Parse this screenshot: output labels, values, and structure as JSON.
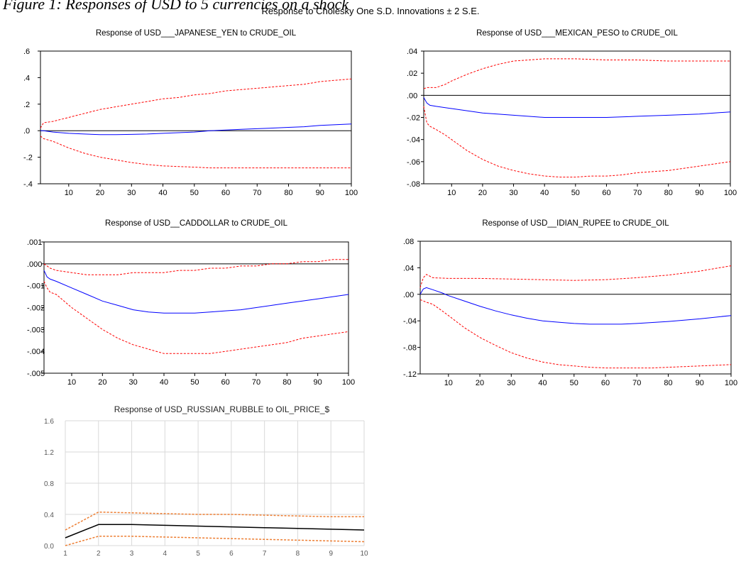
{
  "figure": {
    "caption": "Figure 1: Responses of USD to 5 currencies on a shock",
    "suptitle": "Response to Cholesky One S.D. Innovations ± 2 S.E."
  },
  "colors": {
    "response": "#0000ff",
    "bands": "#ff0000",
    "zero": "#000000",
    "response_rubble": "#000000",
    "bands_rubble": "#ed7d31",
    "grid_rubble": "#d9d9d9"
  },
  "chart_data": [
    {
      "type": "line",
      "title": "Response of USD___JAPANESE_YEN to CRUDE_OIL",
      "xlim": [
        1,
        100
      ],
      "ylim": [
        -0.4,
        0.6
      ],
      "yticks": [
        0.6,
        0.4,
        0.2,
        0.0,
        -0.2,
        -0.4
      ],
      "ytick_labels": [
        ".6",
        ".4",
        ".2",
        ".0",
        "-.2",
        "-.4"
      ],
      "xticks": [
        10,
        20,
        30,
        40,
        50,
        60,
        70,
        80,
        90,
        100
      ],
      "zero_line": true,
      "series": [
        {
          "role": "response",
          "x": [
            1,
            2,
            5,
            10,
            15,
            20,
            25,
            30,
            35,
            40,
            45,
            50,
            55,
            60,
            65,
            70,
            75,
            80,
            85,
            90,
            95,
            100
          ],
          "values": [
            0.0,
            0.0,
            -0.01,
            -0.02,
            -0.025,
            -0.03,
            -0.03,
            -0.028,
            -0.025,
            -0.02,
            -0.015,
            -0.01,
            0.0,
            0.005,
            0.01,
            0.015,
            0.02,
            0.025,
            0.03,
            0.04,
            0.045,
            0.05
          ]
        },
        {
          "role": "upper",
          "x": [
            1,
            2,
            5,
            10,
            15,
            20,
            25,
            30,
            35,
            40,
            45,
            50,
            55,
            60,
            65,
            70,
            75,
            80,
            85,
            90,
            95,
            100
          ],
          "values": [
            0.02,
            0.06,
            0.07,
            0.1,
            0.13,
            0.16,
            0.18,
            0.2,
            0.22,
            0.24,
            0.25,
            0.27,
            0.28,
            0.3,
            0.31,
            0.32,
            0.33,
            0.34,
            0.35,
            0.37,
            0.38,
            0.39
          ]
        },
        {
          "role": "lower",
          "x": [
            1,
            2,
            5,
            10,
            15,
            20,
            25,
            30,
            35,
            40,
            45,
            50,
            55,
            60,
            65,
            70,
            75,
            80,
            85,
            90,
            95,
            100
          ],
          "values": [
            -0.04,
            -0.06,
            -0.08,
            -0.13,
            -0.17,
            -0.2,
            -0.22,
            -0.24,
            -0.255,
            -0.265,
            -0.27,
            -0.275,
            -0.28,
            -0.28,
            -0.28,
            -0.28,
            -0.28,
            -0.28,
            -0.28,
            -0.28,
            -0.28,
            -0.28
          ]
        }
      ]
    },
    {
      "type": "line",
      "title": "Response of USD___MEXICAN_PESO to CRUDE_OIL",
      "xlim": [
        1,
        100
      ],
      "ylim": [
        -0.08,
        0.04
      ],
      "yticks": [
        0.04,
        0.02,
        0.0,
        -0.02,
        -0.04,
        -0.06,
        -0.08
      ],
      "ytick_labels": [
        ".04",
        ".02",
        ".00",
        "-.02",
        "-.04",
        "-.06",
        "-.08"
      ],
      "xticks": [
        10,
        20,
        30,
        40,
        50,
        60,
        70,
        80,
        90,
        100
      ],
      "zero_line": true,
      "series": [
        {
          "role": "response",
          "x": [
            1,
            2,
            3,
            5,
            10,
            20,
            30,
            40,
            50,
            60,
            70,
            80,
            90,
            100
          ],
          "values": [
            -0.002,
            -0.007,
            -0.009,
            -0.01,
            -0.012,
            -0.016,
            -0.018,
            -0.02,
            -0.02,
            -0.02,
            -0.019,
            -0.018,
            -0.017,
            -0.015
          ]
        },
        {
          "role": "upper",
          "x": [
            1,
            2,
            3,
            5,
            8,
            10,
            15,
            20,
            25,
            30,
            35,
            40,
            45,
            50,
            60,
            70,
            80,
            90,
            100
          ],
          "values": [
            0.006,
            0.007,
            0.007,
            0.007,
            0.01,
            0.013,
            0.019,
            0.024,
            0.028,
            0.031,
            0.032,
            0.033,
            0.033,
            0.033,
            0.032,
            0.032,
            0.031,
            0.031,
            0.031
          ]
        },
        {
          "role": "lower",
          "x": [
            1,
            2,
            3,
            5,
            8,
            10,
            15,
            20,
            25,
            30,
            35,
            40,
            45,
            50,
            55,
            60,
            65,
            70,
            80,
            90,
            100
          ],
          "values": [
            -0.01,
            -0.025,
            -0.028,
            -0.031,
            -0.036,
            -0.04,
            -0.05,
            -0.058,
            -0.064,
            -0.068,
            -0.071,
            -0.073,
            -0.074,
            -0.074,
            -0.073,
            -0.073,
            -0.072,
            -0.07,
            -0.068,
            -0.064,
            -0.06
          ]
        }
      ]
    },
    {
      "type": "line",
      "title": "Response of USD__CADDOLLAR to CRUDE_OIL",
      "xlim": [
        1,
        100
      ],
      "ylim": [
        -0.005,
        0.001
      ],
      "yticks": [
        0.001,
        0.0,
        -0.001,
        -0.002,
        -0.003,
        -0.004,
        -0.005
      ],
      "ytick_labels": [
        ".001",
        ".000",
        "-.001",
        "-.002",
        "-.003",
        "-.004",
        "-.005"
      ],
      "xticks": [
        10,
        20,
        30,
        40,
        50,
        60,
        70,
        80,
        90,
        100
      ],
      "zero_line": true,
      "series": [
        {
          "role": "response",
          "x": [
            1,
            2,
            3,
            5,
            10,
            15,
            20,
            25,
            30,
            35,
            40,
            45,
            50,
            55,
            60,
            65,
            70,
            75,
            80,
            85,
            90,
            95,
            100
          ],
          "values": [
            -0.0003,
            -0.0006,
            -0.0007,
            -0.0008,
            -0.0011,
            -0.0014,
            -0.0017,
            -0.0019,
            -0.0021,
            -0.0022,
            -0.00225,
            -0.00225,
            -0.00225,
            -0.0022,
            -0.00215,
            -0.0021,
            -0.002,
            -0.0019,
            -0.0018,
            -0.0017,
            -0.0016,
            -0.0015,
            -0.0014
          ]
        },
        {
          "role": "upper",
          "x": [
            1,
            3,
            5,
            10,
            15,
            20,
            25,
            30,
            35,
            40,
            45,
            50,
            55,
            60,
            65,
            70,
            75,
            80,
            85,
            90,
            95,
            100
          ],
          "values": [
            0.0,
            -0.0002,
            -0.0003,
            -0.0004,
            -0.0005,
            -0.0005,
            -0.0005,
            -0.0004,
            -0.0004,
            -0.0004,
            -0.0003,
            -0.0003,
            -0.0002,
            -0.0002,
            -0.0001,
            -0.0001,
            0.0,
            0.0,
            0.0001,
            0.0001,
            0.0002,
            0.0002
          ]
        },
        {
          "role": "lower",
          "x": [
            1,
            2,
            3,
            5,
            10,
            15,
            20,
            25,
            30,
            35,
            40,
            45,
            50,
            55,
            60,
            65,
            70,
            75,
            80,
            85,
            90,
            95,
            100
          ],
          "values": [
            -0.0008,
            -0.0011,
            -0.0013,
            -0.0014,
            -0.002,
            -0.0025,
            -0.003,
            -0.0034,
            -0.0037,
            -0.0039,
            -0.0041,
            -0.0041,
            -0.0041,
            -0.0041,
            -0.004,
            -0.0039,
            -0.0038,
            -0.0037,
            -0.0036,
            -0.0034,
            -0.0033,
            -0.0032,
            -0.0031
          ]
        }
      ]
    },
    {
      "type": "line",
      "title": "Response of USD__IDIAN_RUPEE to CRUDE_OIL",
      "xlim": [
        1,
        100
      ],
      "ylim": [
        -0.12,
        0.08
      ],
      "yticks": [
        0.08,
        0.04,
        0.0,
        -0.04,
        -0.08,
        -0.12
      ],
      "ytick_labels": [
        ".08",
        ".04",
        ".00",
        "-.04",
        "-.08",
        "-.12"
      ],
      "xticks": [
        10,
        20,
        30,
        40,
        50,
        60,
        70,
        80,
        90,
        100
      ],
      "zero_line": true,
      "series": [
        {
          "role": "response",
          "x": [
            1,
            2,
            3,
            5,
            8,
            10,
            15,
            20,
            25,
            30,
            35,
            40,
            45,
            50,
            55,
            60,
            65,
            70,
            80,
            90,
            100
          ],
          "values": [
            0.0,
            0.008,
            0.01,
            0.007,
            0.002,
            -0.002,
            -0.01,
            -0.018,
            -0.025,
            -0.031,
            -0.036,
            -0.04,
            -0.042,
            -0.044,
            -0.045,
            -0.045,
            -0.045,
            -0.044,
            -0.041,
            -0.037,
            -0.032
          ]
        },
        {
          "role": "upper",
          "x": [
            1,
            2,
            3,
            5,
            10,
            20,
            30,
            40,
            50,
            60,
            70,
            80,
            90,
            100
          ],
          "values": [
            0.01,
            0.025,
            0.03,
            0.025,
            0.024,
            0.024,
            0.023,
            0.022,
            0.021,
            0.022,
            0.025,
            0.029,
            0.035,
            0.043
          ]
        },
        {
          "role": "lower",
          "x": [
            1,
            2,
            3,
            5,
            8,
            10,
            15,
            20,
            25,
            30,
            35,
            40,
            45,
            50,
            55,
            60,
            65,
            70,
            75,
            80,
            85,
            90,
            95,
            100
          ],
          "values": [
            -0.008,
            -0.01,
            -0.012,
            -0.015,
            -0.025,
            -0.032,
            -0.05,
            -0.065,
            -0.077,
            -0.088,
            -0.096,
            -0.102,
            -0.106,
            -0.108,
            -0.11,
            -0.111,
            -0.111,
            -0.111,
            -0.111,
            -0.11,
            -0.109,
            -0.108,
            -0.107,
            -0.106
          ]
        }
      ]
    },
    {
      "type": "line",
      "title": "Response of USD_RUSSIAN_RUBBLE to OIL_PRICE_$",
      "xlim": [
        1,
        10
      ],
      "ylim": [
        0.0,
        1.6
      ],
      "yticks": [
        1.6,
        1.2,
        0.8,
        0.4,
        0.0
      ],
      "ytick_labels": [
        "1.6",
        "1.2",
        "0.8",
        "0.4",
        "0.0"
      ],
      "xticks": [
        1,
        2,
        3,
        4,
        5,
        6,
        7,
        8,
        9,
        10
      ],
      "grid": true,
      "series": [
        {
          "role": "response",
          "x": [
            1,
            2,
            3,
            4,
            5,
            6,
            7,
            8,
            9,
            10
          ],
          "values": [
            0.1,
            0.27,
            0.27,
            0.26,
            0.25,
            0.24,
            0.23,
            0.22,
            0.21,
            0.2
          ]
        },
        {
          "role": "upper",
          "x": [
            1,
            2,
            3,
            4,
            5,
            6,
            7,
            8,
            9,
            10
          ],
          "values": [
            0.2,
            0.43,
            0.42,
            0.41,
            0.4,
            0.4,
            0.39,
            0.38,
            0.37,
            0.37
          ]
        },
        {
          "role": "lower",
          "x": [
            1,
            2,
            3,
            4,
            5,
            6,
            7,
            8,
            9,
            10
          ],
          "values": [
            0.0,
            0.12,
            0.12,
            0.11,
            0.1,
            0.09,
            0.08,
            0.07,
            0.06,
            0.05
          ]
        }
      ]
    }
  ]
}
